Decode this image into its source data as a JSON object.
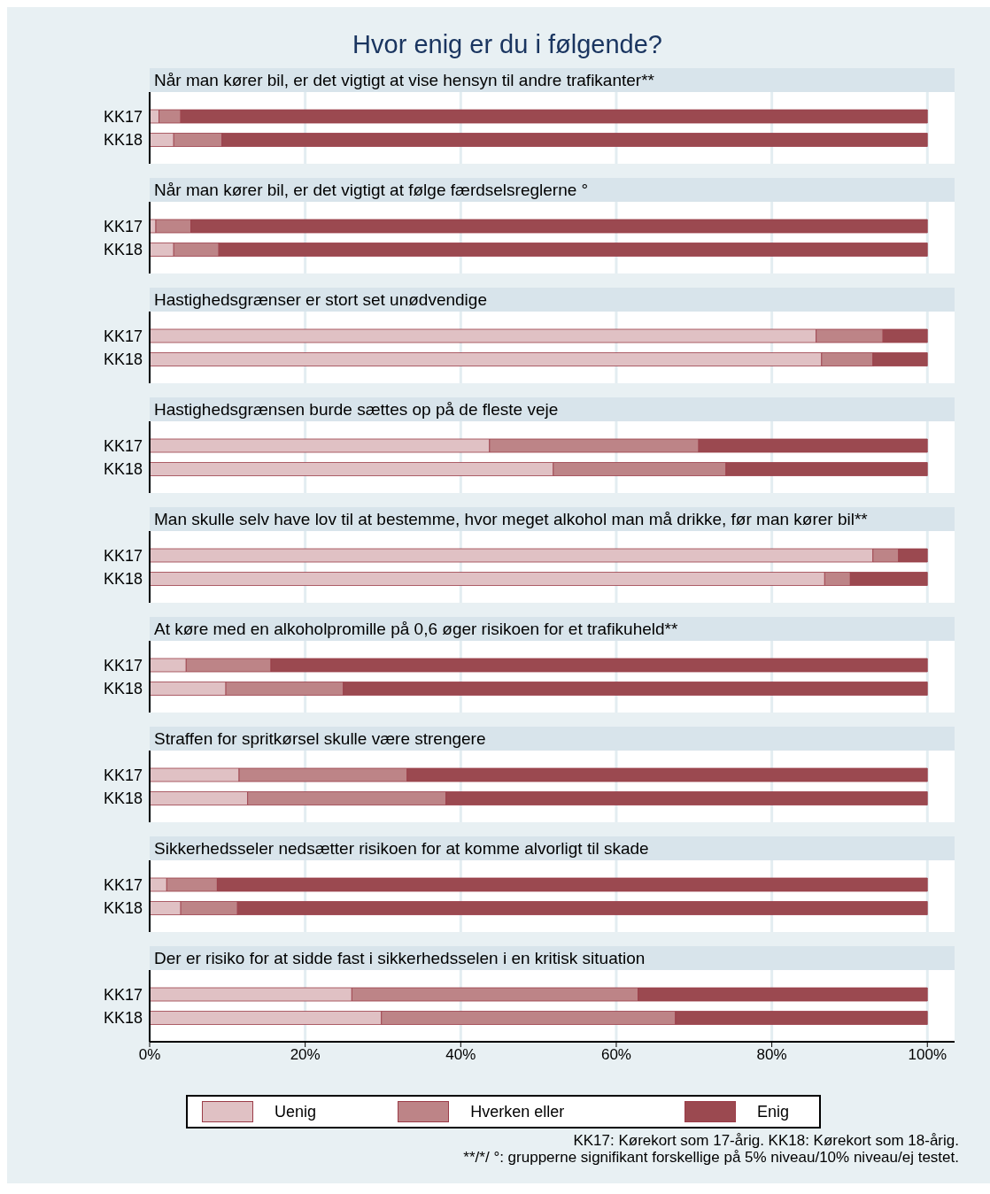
{
  "chart_data": [
    {
      "type": "bar",
      "orientation": "horizontal",
      "stacked": true,
      "title": "Hvor enig er du i følgende?",
      "subtitle": "Når man kører bil, er det vigtigt at vise hensyn til andre trafikanter**",
      "categories": [
        "KK17",
        "KK18"
      ],
      "series": [
        {
          "color": "#e0c1c4",
          "values": [
            1.2,
            3.1
          ]
        },
        {
          "color": "#bd8487",
          "values": [
            2.8,
            6.2
          ]
        },
        {
          "color": "#9b4950",
          "values": [
            96.0,
            90.7
          ]
        }
      ],
      "xlim": [
        0,
        103.5
      ],
      "xticks": [
        0,
        20,
        40,
        60,
        80,
        100
      ],
      "grid": "x",
      "tick_labels": "y"
    },
    {
      "type": "bar",
      "orientation": "horizontal",
      "stacked": true,
      "subtitle": "Når man kører bil, er det vigtigt at følge færdselsreglerne °",
      "categories": [
        "KK17",
        "KK18"
      ],
      "series": [
        {
          "color": "#e0c1c4",
          "values": [
            0.8,
            3.1
          ]
        },
        {
          "color": "#bd8487",
          "values": [
            4.5,
            5.8
          ]
        },
        {
          "color": "#9b4950",
          "values": [
            94.7,
            91.1
          ]
        }
      ],
      "xlim": [
        0,
        103.5
      ],
      "xticks": [
        0,
        20,
        40,
        60,
        80,
        100
      ],
      "grid": "x",
      "tick_labels": "y"
    },
    {
      "type": "bar",
      "orientation": "horizontal",
      "stacked": true,
      "subtitle": "Hastighedsgrænser er stort set unødvendige",
      "categories": [
        "KK17",
        "KK18"
      ],
      "series": [
        {
          "color": "#e0c1c4",
          "values": [
            85.7,
            86.4
          ]
        },
        {
          "color": "#bd8487",
          "values": [
            8.6,
            6.6
          ]
        },
        {
          "color": "#9b4950",
          "values": [
            5.7,
            7.0
          ]
        }
      ],
      "xlim": [
        0,
        103.5
      ],
      "xticks": [
        0,
        20,
        40,
        60,
        80,
        100
      ],
      "grid": "x",
      "tick_labels": "y"
    },
    {
      "type": "bar",
      "orientation": "horizontal",
      "stacked": true,
      "subtitle": "Hastighedsgrænsen burde sættes op på de fleste veje",
      "categories": [
        "KK17",
        "KK18"
      ],
      "series": [
        {
          "color": "#e0c1c4",
          "values": [
            43.7,
            51.9
          ]
        },
        {
          "color": "#bd8487",
          "values": [
            26.9,
            22.2
          ]
        },
        {
          "color": "#9b4950",
          "values": [
            29.4,
            25.9
          ]
        }
      ],
      "xlim": [
        0,
        103.5
      ],
      "xticks": [
        0,
        20,
        40,
        60,
        80,
        100
      ],
      "grid": "x",
      "tick_labels": "y"
    },
    {
      "type": "bar",
      "orientation": "horizontal",
      "stacked": true,
      "subtitle": "Man skulle selv have lov til at bestemme, hvor meget alkohol man må drikke, før man kører bil**",
      "categories": [
        "KK17",
        "KK18"
      ],
      "series": [
        {
          "color": "#e0c1c4",
          "values": [
            93.0,
            86.8
          ]
        },
        {
          "color": "#bd8487",
          "values": [
            3.3,
            3.3
          ]
        },
        {
          "color": "#9b4950",
          "values": [
            3.7,
            9.9
          ]
        }
      ],
      "xlim": [
        0,
        103.5
      ],
      "xticks": [
        0,
        20,
        40,
        60,
        80,
        100
      ],
      "grid": "x",
      "tick_labels": "y"
    },
    {
      "type": "bar",
      "orientation": "horizontal",
      "stacked": true,
      "subtitle": "At køre med en alkoholpromille på 0,6 øger risikoen for et trafikuheld**",
      "categories": [
        "KK17",
        "KK18"
      ],
      "series": [
        {
          "color": "#e0c1c4",
          "values": [
            4.7,
            9.8
          ]
        },
        {
          "color": "#bd8487",
          "values": [
            10.9,
            15.1
          ]
        },
        {
          "color": "#9b4950",
          "values": [
            84.4,
            75.1
          ]
        }
      ],
      "xlim": [
        0,
        103.5
      ],
      "xticks": [
        0,
        20,
        40,
        60,
        80,
        100
      ],
      "grid": "x",
      "tick_labels": "y"
    },
    {
      "type": "bar",
      "orientation": "horizontal",
      "stacked": true,
      "subtitle": "Straffen for spritkørsel skulle være strengere",
      "categories": [
        "KK17",
        "KK18"
      ],
      "series": [
        {
          "color": "#e0c1c4",
          "values": [
            11.5,
            12.6
          ]
        },
        {
          "color": "#bd8487",
          "values": [
            21.6,
            25.5
          ]
        },
        {
          "color": "#9b4950",
          "values": [
            66.9,
            61.9
          ]
        }
      ],
      "xlim": [
        0,
        103.5
      ],
      "xticks": [
        0,
        20,
        40,
        60,
        80,
        100
      ],
      "grid": "x",
      "tick_labels": "y"
    },
    {
      "type": "bar",
      "orientation": "horizontal",
      "stacked": true,
      "subtitle": "Sikkerhedsseler nedsætter risikoen for at komme alvorligt til skade",
      "categories": [
        "KK17",
        "KK18"
      ],
      "series": [
        {
          "color": "#e0c1c4",
          "values": [
            2.2,
            4.0
          ]
        },
        {
          "color": "#bd8487",
          "values": [
            6.5,
            7.3
          ]
        },
        {
          "color": "#9b4950",
          "values": [
            91.3,
            88.7
          ]
        }
      ],
      "xlim": [
        0,
        103.5
      ],
      "xticks": [
        0,
        20,
        40,
        60,
        80,
        100
      ],
      "grid": "x",
      "tick_labels": "y"
    },
    {
      "type": "bar",
      "orientation": "horizontal",
      "stacked": true,
      "subtitle": "Der er risiko for at sidde fast i sikkerhedsselen i en kritisk situation",
      "categories": [
        "KK17",
        "KK18"
      ],
      "series": [
        {
          "name": "Uenig",
          "color": "#e0c1c4",
          "values": [
            26.0,
            29.8
          ]
        },
        {
          "name": "Hverken eller",
          "color": "#bd8487",
          "values": [
            36.8,
            37.8
          ]
        },
        {
          "name": "Enig",
          "color": "#9b4950",
          "values": [
            37.2,
            32.4
          ]
        }
      ],
      "xlim": [
        0,
        103.5
      ],
      "xticks": [
        {
          "value": 0,
          "label": "0%"
        },
        {
          "value": 20,
          "label": "20%"
        },
        {
          "value": 40,
          "label": "40%"
        },
        {
          "value": 60,
          "label": "60%"
        },
        {
          "value": 80,
          "label": "80%"
        },
        {
          "value": 100,
          "label": "100%"
        }
      ],
      "grid": "x",
      "legend": "bottom",
      "annotations": [
        "KK17: Kørekort som 17-årig. KK18: Kørekort som 18-årig.",
        "**/*/ °: grupperne signifikant forskellige på 5% niveau/10% niveau/ej testet."
      ]
    }
  ]
}
